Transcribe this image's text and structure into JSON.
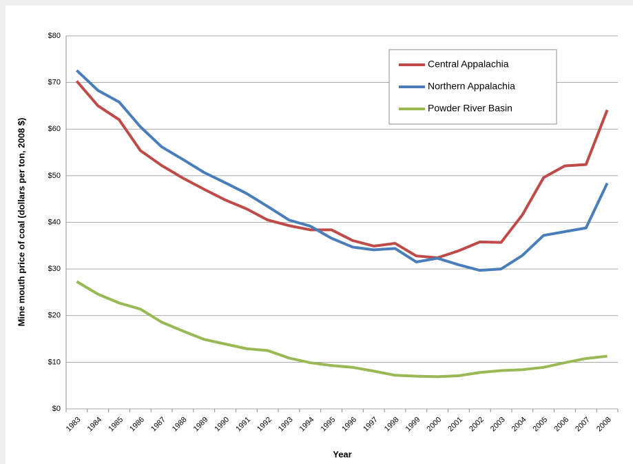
{
  "chart_data": {
    "type": "line",
    "x_label": "Year",
    "y_label": "Mine mouth price of coal (dollars per ton, 2008 $)",
    "categories": [
      "1983",
      "1984",
      "1985",
      "1986",
      "1987",
      "1988",
      "1989",
      "1990",
      "1991",
      "1992",
      "1993",
      "1994",
      "1995",
      "1996",
      "1997",
      "1998",
      "1999",
      "2000",
      "2001",
      "2002",
      "2003",
      "2004",
      "2005",
      "2006",
      "2007",
      "2008"
    ],
    "series": [
      {
        "name": "Central Appalachia",
        "color": "#be4b48",
        "values": [
          70.3,
          65.0,
          62.0,
          55.4,
          52.2,
          49.5,
          47.1,
          44.8,
          42.9,
          40.5,
          39.3,
          38.4,
          38.4,
          36.1,
          34.9,
          35.5,
          32.8,
          32.4,
          33.9,
          35.8,
          35.7,
          41.6,
          49.6,
          52.1,
          52.4,
          64.1
        ]
      },
      {
        "name": "Northern Appalachia",
        "color": "#4a7ebb",
        "values": [
          72.6,
          68.3,
          65.8,
          60.5,
          56.2,
          53.5,
          50.7,
          48.5,
          46.2,
          43.4,
          40.5,
          39.2,
          36.6,
          34.7,
          34.1,
          34.4,
          31.5,
          32.3,
          30.9,
          29.7,
          30.0,
          32.9,
          37.2,
          38.0,
          38.8,
          48.4
        ]
      },
      {
        "name": "Powder River Basin",
        "color": "#98b954",
        "values": [
          27.3,
          24.6,
          22.7,
          21.4,
          18.6,
          16.7,
          14.9,
          13.9,
          12.9,
          12.5,
          10.9,
          9.9,
          9.3,
          8.9,
          8.1,
          7.2,
          7.0,
          6.9,
          7.1,
          7.8,
          8.2,
          8.4,
          8.9,
          9.9,
          10.8,
          11.3
        ]
      }
    ],
    "ylim": [
      0,
      80
    ],
    "yticks": [
      {
        "value": 0,
        "label": "$0"
      },
      {
        "value": 10,
        "label": "$10"
      },
      {
        "value": 20,
        "label": "$20"
      },
      {
        "value": 30,
        "label": "$30"
      },
      {
        "value": 40,
        "label": "$40"
      },
      {
        "value": 50,
        "label": "$50"
      },
      {
        "value": 60,
        "label": "$60"
      },
      {
        "value": 70,
        "label": "$70"
      },
      {
        "value": 80,
        "label": "$80"
      }
    ],
    "grid": true,
    "legend_position": "upper right"
  }
}
